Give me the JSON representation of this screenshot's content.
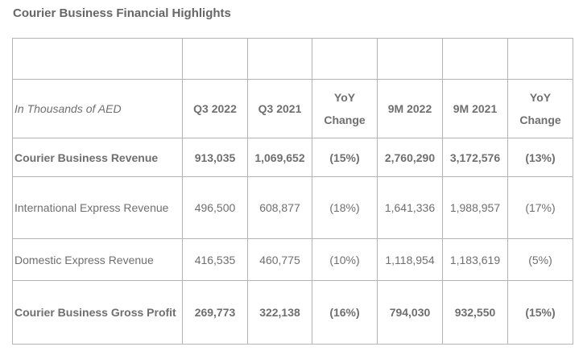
{
  "title": "Courier Business Financial Highlights",
  "table": {
    "units_label": "In Thousands of AED",
    "headers": [
      "Q3 2022",
      "Q3 2021",
      "YoY Change",
      "9M 2022",
      "9M 2021",
      "YoY Change"
    ],
    "rows": [
      {
        "label": "Courier Business Revenue",
        "bold": true,
        "values": [
          "913,035",
          "1,069,652",
          "(15%)",
          "2,760,290",
          "3,172,576",
          "(13%)"
        ]
      },
      {
        "label": "International Express Revenue",
        "bold": false,
        "values": [
          "496,500",
          "608,877",
          "(18%)",
          "1,641,336",
          "1,988,957",
          "(17%)"
        ]
      },
      {
        "label": "Domestic Express Revenue",
        "bold": false,
        "values": [
          "416,535",
          "460,775",
          "(10%)",
          "1,118,954",
          "1,183,619",
          "(5%)"
        ]
      },
      {
        "label": "Courier Business Gross Profit",
        "bold": true,
        "values": [
          "269,773",
          "322,138",
          "(16%)",
          "794,030",
          "932,550",
          "(15%)"
        ]
      }
    ]
  }
}
